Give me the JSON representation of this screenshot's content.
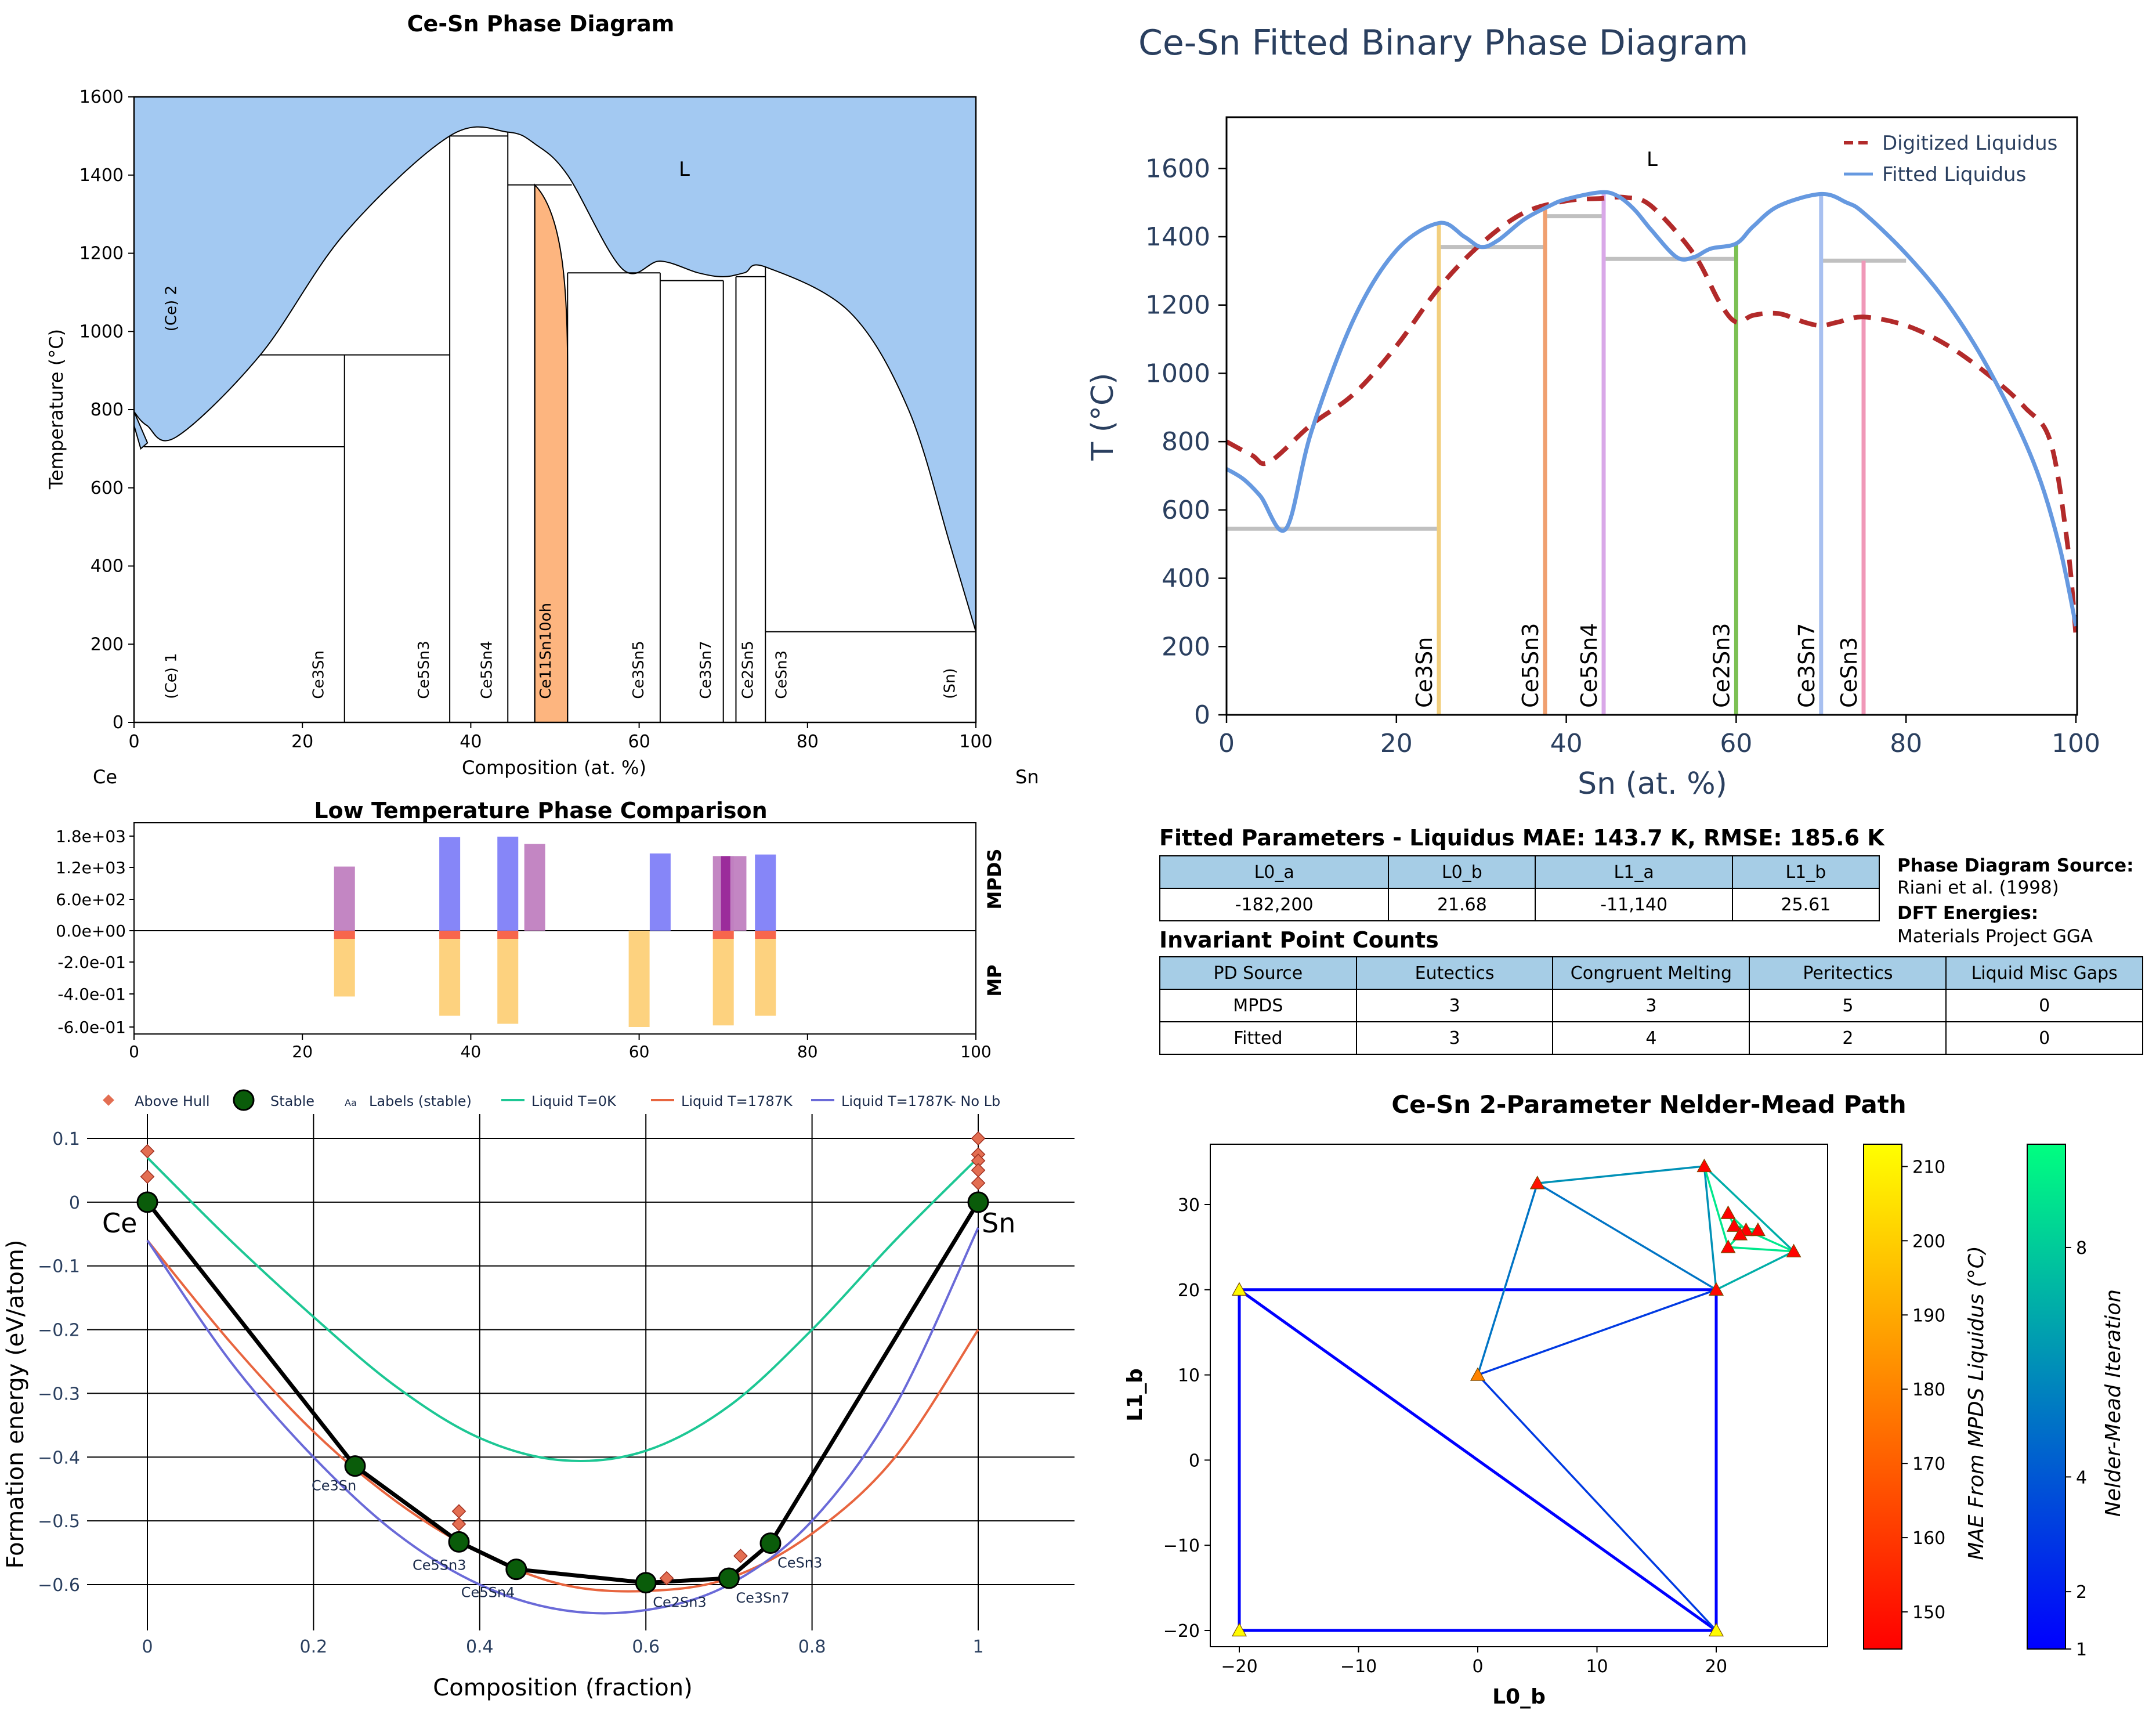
{
  "panel1": {
    "title": "Ce-Sn Phase Diagram",
    "xlabel": "Composition (at. %)",
    "ylabel": "Temperature (°C)",
    "left_element": "Ce",
    "right_element": "Sn",
    "region_label": "L",
    "xticks": [
      "0",
      "20",
      "40",
      "60",
      "80",
      "100"
    ],
    "yticks": [
      "0",
      "200",
      "400",
      "600",
      "800",
      "1000",
      "1200",
      "1400",
      "1600"
    ],
    "colors": {
      "liquid": "#a3c9f2",
      "ce11sn10": "#fdb57f"
    },
    "phase_labels": [
      "(Ce) 1",
      "(Ce) 2",
      "Ce3Sn",
      "Ce5Sn3",
      "Ce5Sn4",
      "Ce11Sn10oh",
      "Ce3Sn5",
      "Ce3Sn7",
      "Ce2Sn5",
      "CeSn3",
      "(Sn)"
    ]
  },
  "panel2": {
    "title": "Low Temperature Phase Comparison",
    "right_label_top": "MPDS",
    "right_label_bottom": "MP",
    "yticks": [
      "1.8e+03",
      "1.2e+03",
      "6.0e+02",
      "0.0e+00",
      "-2.0e-01",
      "-4.0e-01",
      "-6.0e-01"
    ],
    "xticks": [
      "0",
      "20",
      "40",
      "60",
      "80",
      "100"
    ],
    "colors": {
      "blue": "#7f80f8",
      "purple": "#c07fc0",
      "orange": "#fdd27f",
      "red": "#f7664c",
      "darkpurple": "#9b2c9b"
    }
  },
  "panel3": {
    "xlabel": "Composition (fraction)",
    "ylabel": "Formation energy (eV/atom)",
    "xticks": [
      "0",
      "0.2",
      "0.4",
      "0.6",
      "0.8",
      "1"
    ],
    "yticks": [
      "0.1",
      "0",
      "−0.1",
      "−0.2",
      "−0.3",
      "−0.4",
      "−0.5",
      "−0.6"
    ],
    "end_left": "Ce",
    "end_right": "Sn",
    "legend": [
      "Above Hull",
      "Stable",
      "Labels (stable)",
      "Liquid T=0K",
      "Liquid T=1787K",
      "Liquid T=1787K- No Lb"
    ],
    "legend_aa": "Aa",
    "stable_labels": [
      "Ce3Sn",
      "Ce5Sn3",
      "Ce5Sn4",
      "Ce2Sn3",
      "Ce3Sn7",
      "CeSn3"
    ],
    "colors": {
      "liq0": "#1dc794",
      "liq1787": "#e8653f",
      "liqnolb": "#6a6ad8",
      "hull": "#000000",
      "stable": "#0a5c0a",
      "above": "#e36e52"
    }
  },
  "panel4": {
    "title": "Ce-Sn Fitted Binary Phase Diagram",
    "xlabel": "Sn (at. %)",
    "ylabel": "T (°C)",
    "region_label": "L",
    "xticks": [
      "0",
      "20",
      "40",
      "60",
      "80",
      "100"
    ],
    "yticks": [
      "0",
      "200",
      "400",
      "600",
      "800",
      "1000",
      "1200",
      "1400",
      "1600"
    ],
    "legend": [
      "Digitized Liquidus",
      "Fitted Liquidus"
    ],
    "compounds": [
      "Ce3Sn",
      "Ce5Sn3",
      "Ce5Sn4",
      "Ce2Sn3",
      "Ce3Sn7",
      "CeSn3"
    ],
    "colors": {
      "digitized": "#b22a2a",
      "fitted": "#6699e0",
      "tie": "#c0c0c0",
      "text": "#2a3f5f"
    }
  },
  "params": {
    "title": "Fitted Parameters - Liquidus MAE: 143.7 K, RMSE: 185.6 K",
    "headers": [
      "L0_a",
      "L0_b",
      "L1_a",
      "L1_b"
    ],
    "values": [
      "-182,200",
      "21.68",
      "-11,140",
      "25.61"
    ]
  },
  "source": {
    "pd_label": "Phase Diagram Source:",
    "pd_value": "Riani et al. (1998)",
    "dft_label": "DFT Energies:",
    "dft_value": "Materials Project GGA"
  },
  "invariants": {
    "title": "Invariant Point Counts",
    "headers": [
      "PD Source",
      "Eutectics",
      "Congruent Melting",
      "Peritectics",
      "Liquid Misc Gaps"
    ],
    "rows": [
      [
        "MPDS",
        "3",
        "3",
        "5",
        "0"
      ],
      [
        "Fitted",
        "3",
        "4",
        "2",
        "0"
      ]
    ]
  },
  "panel5": {
    "title": "Ce-Sn 2-Parameter Nelder-Mead Path",
    "xlabel": "L0_b",
    "ylabel": "L1_b",
    "xticks": [
      "−20",
      "−10",
      "0",
      "10",
      "20"
    ],
    "yticks": [
      "−20",
      "−10",
      "0",
      "10",
      "20",
      "30"
    ],
    "cbar1_label": "MAE From MPDS Liquidus (°C)",
    "cbar1_ticks": [
      "150",
      "160",
      "170",
      "180",
      "190",
      "200",
      "210"
    ],
    "cbar2_label": "Nelder-Mead Iteration",
    "cbar2_ticks": [
      "1",
      "2",
      "4",
      "8"
    ]
  },
  "chart_data": [
    {
      "type": "area",
      "title": "Ce-Sn Phase Diagram",
      "xlabel": "Composition (at. %)",
      "ylabel": "Temperature (°C)",
      "xlim": [
        0,
        100
      ],
      "ylim": [
        0,
        1600
      ],
      "liquidus": {
        "x": [
          0,
          1.5,
          5,
          15,
          25,
          37.5,
          44.4,
          47.6,
          51.5,
          58,
          62.5,
          67,
          70,
          72.5,
          75,
          85,
          92,
          97,
          100
        ],
        "y": [
          795,
          760,
          730,
          940,
          1250,
          1500,
          1510,
          1480,
          1400,
          1160,
          1180,
          1150,
          1140,
          1150,
          1165,
          1050,
          800,
          450,
          232
        ]
      },
      "compound_lines_x": [
        25,
        37.5,
        44.4,
        47.6,
        51.5,
        62.5,
        70,
        71.5,
        75,
        100
      ],
      "invariants_T": [
        705,
        940,
        1150,
        1375,
        1130,
        230
      ]
    },
    {
      "type": "bar",
      "title": "Low Temperature Phase Comparison",
      "mpds": [
        {
          "x": 25,
          "value": 1220,
          "color": "purple"
        },
        {
          "x": 37.5,
          "value": 1780,
          "color": "blue"
        },
        {
          "x": 44.4,
          "value": 1790,
          "color": "blue"
        },
        {
          "x": 47.6,
          "value": 1650,
          "color": "purple"
        },
        {
          "x": 62.5,
          "value": 1470,
          "color": "blue"
        },
        {
          "x": 70,
          "value": 1420,
          "color": "purple"
        },
        {
          "x": 71.5,
          "value": 1420,
          "color": "purple"
        },
        {
          "x": 75,
          "value": 1450,
          "color": "blue"
        }
      ],
      "mp": [
        {
          "x": 25,
          "value": -0.41
        },
        {
          "x": 37.5,
          "value": -0.53
        },
        {
          "x": 44.4,
          "value": -0.58
        },
        {
          "x": 60,
          "value": -0.6
        },
        {
          "x": 70,
          "value": -0.59
        },
        {
          "x": 75,
          "value": -0.53
        }
      ]
    },
    {
      "type": "line",
      "xlabel": "Composition (fraction)",
      "ylabel": "Formation energy (eV/atom)",
      "xlim": [
        0,
        1
      ],
      "ylim": [
        -0.65,
        0.1
      ],
      "hull": {
        "x": [
          0,
          0.25,
          0.375,
          0.444,
          0.6,
          0.7,
          0.75,
          1
        ],
        "y": [
          0,
          -0.414,
          -0.533,
          -0.576,
          -0.597,
          -0.59,
          -0.535,
          0
        ]
      },
      "above_hull": {
        "x": [
          0,
          0,
          0.375,
          0.375,
          0.625,
          0.714,
          1,
          1,
          1,
          1,
          1
        ],
        "y": [
          0.08,
          0.04,
          -0.485,
          -0.505,
          -0.59,
          -0.555,
          0.1,
          0.075,
          0.065,
          0.05,
          0.03
        ]
      },
      "series": [
        {
          "name": "Liquid T=0K",
          "x": [
            0,
            0.1,
            0.2,
            0.3,
            0.4,
            0.5,
            0.6,
            0.7,
            0.8,
            0.9,
            1
          ],
          "y": [
            0.07,
            -0.06,
            -0.18,
            -0.29,
            -0.37,
            -0.405,
            -0.39,
            -0.32,
            -0.2,
            -0.06,
            0.07
          ]
        },
        {
          "name": "Liquid T=1787K",
          "x": [
            0,
            0.1,
            0.2,
            0.3,
            0.4,
            0.5,
            0.6,
            0.7,
            0.8,
            0.9,
            1
          ],
          "y": [
            -0.06,
            -0.22,
            -0.36,
            -0.47,
            -0.55,
            -0.6,
            -0.61,
            -0.59,
            -0.52,
            -0.4,
            -0.2
          ]
        },
        {
          "name": "Liquid T=1787K- No Lb",
          "x": [
            0,
            0.1,
            0.2,
            0.3,
            0.4,
            0.5,
            0.6,
            0.7,
            0.8,
            0.9,
            1
          ],
          "y": [
            -0.06,
            -0.25,
            -0.4,
            -0.52,
            -0.6,
            -0.64,
            -0.64,
            -0.6,
            -0.5,
            -0.32,
            -0.04
          ]
        }
      ]
    },
    {
      "type": "line",
      "title": "Ce-Sn Fitted Binary Phase Diagram",
      "xlabel": "Sn (at. %)",
      "ylabel": "T (°C)",
      "xlim": [
        0,
        100
      ],
      "ylim": [
        0,
        1750
      ],
      "series": [
        {
          "name": "Digitized Liquidus",
          "x": [
            0,
            3,
            5,
            10,
            15,
            20,
            25,
            30,
            35,
            40,
            44,
            47,
            50,
            55,
            58,
            60,
            62,
            65,
            68,
            70,
            72,
            75,
            80,
            85,
            90,
            94,
            97,
            99,
            100
          ],
          "y": [
            800,
            760,
            740,
            850,
            940,
            1080,
            1250,
            1380,
            1470,
            1505,
            1512,
            1515,
            1490,
            1350,
            1210,
            1150,
            1170,
            1175,
            1150,
            1140,
            1150,
            1165,
            1140,
            1080,
            990,
            900,
            800,
            500,
            230
          ]
        },
        {
          "name": "Fitted Liquidus",
          "x": [
            0,
            2,
            4,
            7,
            10,
            15,
            20,
            25,
            28,
            30,
            32,
            35,
            38,
            40,
            44,
            46,
            48,
            50,
            53,
            55,
            57,
            60,
            62,
            65,
            70,
            73,
            75,
            80,
            85,
            90,
            95,
            98,
            100
          ],
          "y": [
            720,
            690,
            640,
            545,
            830,
            1160,
            1360,
            1440,
            1400,
            1370,
            1390,
            1450,
            1490,
            1510,
            1530,
            1520,
            1480,
            1420,
            1340,
            1340,
            1365,
            1380,
            1430,
            1490,
            1525,
            1500,
            1470,
            1350,
            1200,
            1000,
            740,
            500,
            260
          ]
        }
      ],
      "compounds": [
        {
          "name": "Ce3Sn",
          "x": 25,
          "top": 1440
        },
        {
          "name": "Ce5Sn3",
          "x": 37.5,
          "top": 1480
        },
        {
          "name": "Ce5Sn4",
          "x": 44.4,
          "top": 1525
        },
        {
          "name": "Ce2Sn3",
          "x": 60,
          "top": 1380
        },
        {
          "name": "Ce3Sn7",
          "x": 70,
          "top": 1525
        },
        {
          "name": "CeSn3",
          "x": 75,
          "top": 1330
        }
      ],
      "tie_lines": [
        {
          "x": [
            0,
            25
          ],
          "y": 545
        },
        {
          "x": [
            25,
            37.5
          ],
          "y": 1370
        },
        {
          "x": [
            37.5,
            44.4
          ],
          "y": 1460
        },
        {
          "x": [
            44.4,
            60
          ],
          "y": 1335
        },
        {
          "x": [
            70,
            80
          ],
          "y": 1330
        }
      ]
    },
    {
      "type": "scatter",
      "title": "Ce-Sn 2-Parameter Nelder-Mead Path",
      "xlabel": "L0_b",
      "ylabel": "L1_b",
      "xlim": [
        -22,
        28
      ],
      "ylim": [
        -21,
        37
      ],
      "points": [
        {
          "x": -20,
          "y": 20,
          "mae": 212
        },
        {
          "x": -20,
          "y": -20,
          "mae": 212
        },
        {
          "x": 20,
          "y": -20,
          "mae": 212
        },
        {
          "x": 20,
          "y": 20,
          "mae": 147
        },
        {
          "x": 0,
          "y": 10,
          "mae": 180
        },
        {
          "x": 5,
          "y": 32.5,
          "mae": 150
        },
        {
          "x": 19,
          "y": 34.5,
          "mae": 146
        },
        {
          "x": 26.5,
          "y": 24.5,
          "mae": 146
        },
        {
          "x": 21,
          "y": 25,
          "mae": 145
        },
        {
          "x": 21,
          "y": 29,
          "mae": 145
        },
        {
          "x": 22.5,
          "y": 27,
          "mae": 145
        },
        {
          "x": 21.5,
          "y": 27.5,
          "mae": 145
        },
        {
          "x": 23.5,
          "y": 27,
          "mae": 145
        },
        {
          "x": 22,
          "y": 26.5,
          "mae": 145
        }
      ],
      "path_segments": [
        {
          "x": [
            -20,
            20,
            20,
            -20,
            -20,
            20
          ],
          "y": [
            20,
            20,
            -20,
            -20,
            20,
            -20
          ],
          "iter": 1
        },
        {
          "x": [
            20,
            0,
            20
          ],
          "y": [
            -20,
            10,
            20
          ],
          "iter": 3
        },
        {
          "x": [
            0,
            5,
            20
          ],
          "y": [
            10,
            32.5,
            20
          ],
          "iter": 5
        },
        {
          "x": [
            5,
            19,
            20
          ],
          "y": [
            32.5,
            34.5,
            20
          ],
          "iter": 6
        },
        {
          "x": [
            19,
            26.5,
            20
          ],
          "y": [
            34.5,
            24.5,
            20
          ],
          "iter": 7
        },
        {
          "x": [
            19,
            21,
            26.5,
            22.5,
            21,
            21.5,
            23.5,
            22,
            21
          ],
          "y": [
            34.5,
            25,
            24.5,
            27,
            29,
            27.5,
            27,
            26.5,
            25
          ],
          "iter": 9
        }
      ],
      "mae_range": [
        145,
        213
      ],
      "iter_range": [
        1,
        9.8
      ]
    }
  ]
}
